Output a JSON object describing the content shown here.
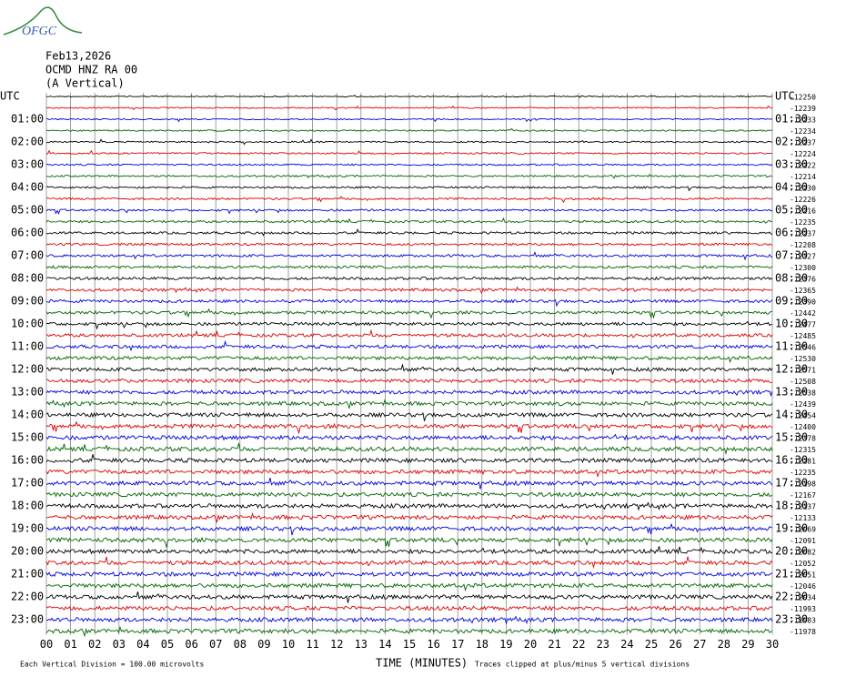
{
  "logo": "OFGC",
  "header": {
    "date": "Feb13,2026",
    "station": "OCMD HNZ RA 00",
    "component": "(A Vertical)"
  },
  "left_labels": [
    "UTC",
    "01:00",
    "02:00",
    "03:00",
    "04:00",
    "05:00",
    "06:00",
    "07:00",
    "08:00",
    "09:00",
    "10:00",
    "11:00",
    "12:00",
    "13:00",
    "14:00",
    "15:00",
    "16:00",
    "17:00",
    "18:00",
    "19:00",
    "20:00",
    "21:00",
    "22:00",
    "23:00"
  ],
  "right_labels": [
    "UTC",
    "01:30",
    "02:30",
    "03:30",
    "04:30",
    "05:30",
    "06:30",
    "07:30",
    "08:30",
    "09:30",
    "10:30",
    "11:30",
    "12:30",
    "13:30",
    "14:30",
    "15:30",
    "16:30",
    "17:30",
    "18:30",
    "19:30",
    "20:30",
    "21:30",
    "22:30",
    "23:30"
  ],
  "right_values": [
    -12250,
    -12239,
    -12233,
    -12234,
    -12237,
    -12224,
    -12222,
    -12214,
    -12230,
    -12226,
    -12216,
    -12235,
    -12237,
    -12208,
    -12327,
    -12300,
    -12376,
    -12365,
    -12390,
    -12442,
    -12477,
    -12485,
    -12546,
    -12530,
    -12571,
    -12508,
    -12538,
    -12439,
    -12454,
    -12400,
    -12378,
    -12315,
    -12281,
    -12235,
    -12198,
    -12167,
    -12137,
    -12133,
    -12069,
    -12091,
    -12082,
    -12052,
    -12051,
    -12046,
    -12034,
    -11993,
    -11983,
    -11978
  ],
  "x_axis": {
    "ticks": [
      "00",
      "01",
      "02",
      "03",
      "04",
      "05",
      "06",
      "07",
      "08",
      "09",
      "10",
      "11",
      "12",
      "13",
      "14",
      "15",
      "16",
      "17",
      "18",
      "19",
      "20",
      "21",
      "22",
      "23",
      "24",
      "25",
      "26",
      "27",
      "28",
      "29",
      "30"
    ],
    "title": "TIME (MINUTES)"
  },
  "footer": {
    "scale": "Each Vertical Division =  100.00 microvolts",
    "clip": "Traces clipped at plus/minus 5 vertical divisions"
  }
}
